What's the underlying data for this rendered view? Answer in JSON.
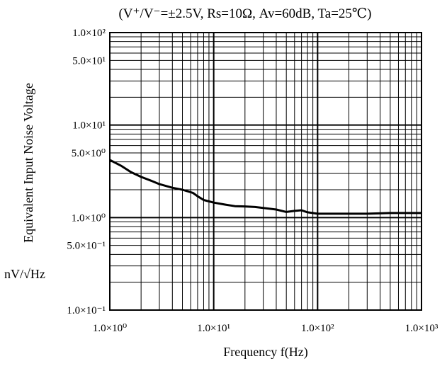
{
  "chart_data": {
    "type": "line",
    "title": "(V⁺/V⁻=±2.5V, Rs=10Ω,  Av=60dB, Ta=25℃)",
    "xlabel": "Frequency f(Hz)",
    "ylabel": "Equivalent Input Noise Voltage",
    "yunit": "nV/√Hz",
    "xscale": "log",
    "yscale": "log",
    "xlim": [
      1,
      1000
    ],
    "ylim": [
      0.1,
      100
    ],
    "grid": true,
    "x_ticks": [
      {
        "value": 1,
        "label": "1.0×10⁰"
      },
      {
        "value": 10,
        "label": "1.0×10¹"
      },
      {
        "value": 100,
        "label": "1.0×10²"
      },
      {
        "value": 1000,
        "label": "1.0×10³"
      }
    ],
    "y_ticks": [
      {
        "value": 100,
        "label": "1.0×10²"
      },
      {
        "value": 50,
        "label": "5.0×10¹"
      },
      {
        "value": 10,
        "label": "1.0×10¹"
      },
      {
        "value": 5,
        "label": "5.0×10⁰"
      },
      {
        "value": 1,
        "label": "1.0×10⁰"
      },
      {
        "value": 0.5,
        "label": "5.0×10⁻¹"
      },
      {
        "value": 0.1,
        "label": "1.0×10⁻¹"
      }
    ],
    "series": [
      {
        "x": [
          1.0,
          1.3,
          1.6,
          2.0,
          2.5,
          3.0,
          4.0,
          5.0,
          6.3,
          7.0,
          8.0,
          10,
          13,
          16,
          20,
          25,
          30,
          40,
          50,
          60,
          70,
          80,
          90,
          100,
          150,
          200,
          300,
          500,
          700,
          1000
        ],
        "y": [
          4.2,
          3.6,
          3.1,
          2.75,
          2.5,
          2.3,
          2.1,
          2.0,
          1.85,
          1.7,
          1.55,
          1.45,
          1.38,
          1.33,
          1.32,
          1.3,
          1.27,
          1.22,
          1.15,
          1.18,
          1.2,
          1.14,
          1.12,
          1.1,
          1.1,
          1.1,
          1.1,
          1.12,
          1.12,
          1.12
        ]
      }
    ]
  }
}
